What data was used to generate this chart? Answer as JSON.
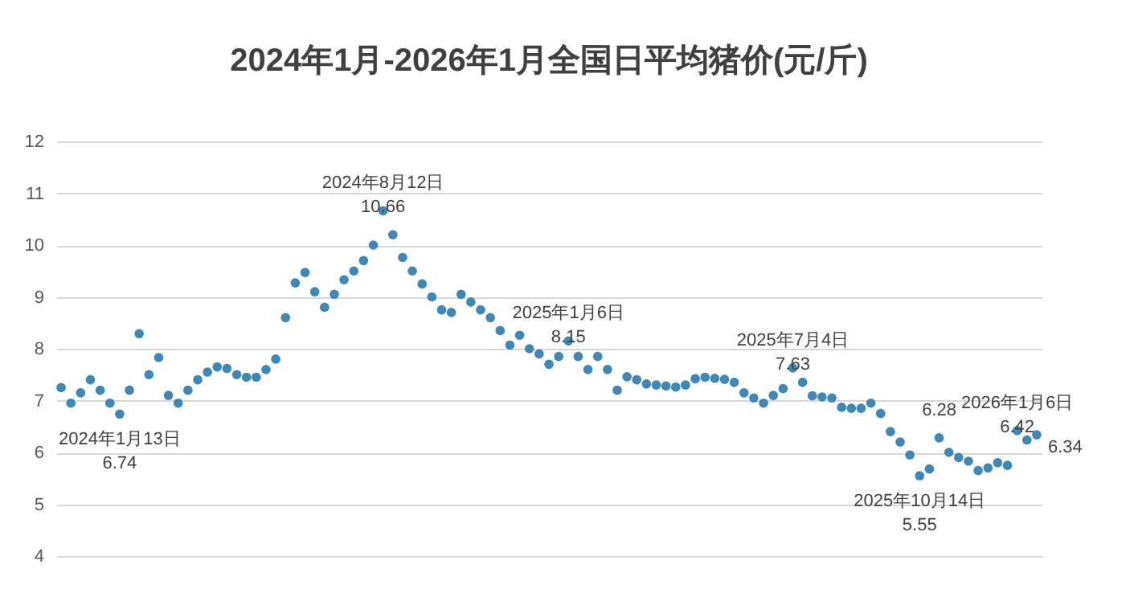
{
  "chart_data": {
    "type": "scatter",
    "title": "2024年1月-2026年1月全国日平均猪价(元/斤)",
    "categories": [
      null,
      null,
      null,
      null,
      null,
      null,
      null,
      null,
      null,
      null,
      null,
      null,
      null,
      null,
      null,
      null,
      null,
      null,
      null,
      null,
      null,
      null,
      null,
      null,
      null,
      null,
      null,
      null,
      null,
      null,
      null,
      null,
      null,
      null,
      null,
      null,
      null,
      null,
      null,
      null,
      null,
      null,
      null,
      null,
      null,
      null,
      null,
      null,
      null,
      null,
      null,
      null,
      null,
      null,
      null,
      null,
      null,
      null,
      null,
      null,
      null,
      null,
      null,
      null,
      null,
      null,
      null,
      null,
      null,
      null,
      null,
      null,
      null,
      null,
      null,
      null,
      null,
      null,
      null,
      null,
      null,
      null,
      null,
      null,
      null,
      null,
      null,
      null,
      null,
      null,
      null,
      null,
      null,
      null,
      null,
      null,
      null,
      null,
      null,
      null,
      null
    ],
    "series": [
      {
        "color": "#3e88b7",
        "values": [
          7.25,
          6.95,
          7.15,
          7.4,
          7.2,
          6.95,
          6.74,
          7.2,
          8.29,
          7.5,
          7.83,
          7.1,
          6.95,
          7.2,
          7.4,
          7.55,
          7.65,
          7.62,
          7.5,
          7.45,
          7.45,
          7.6,
          7.8,
          8.6,
          9.27,
          9.47,
          9.1,
          8.8,
          9.05,
          9.33,
          9.5,
          9.7,
          10.0,
          10.66,
          10.2,
          9.76,
          9.5,
          9.25,
          9.0,
          8.75,
          8.7,
          9.05,
          8.9,
          8.75,
          8.6,
          8.35,
          8.07,
          8.26,
          8.0,
          7.9,
          7.7,
          7.85,
          8.15,
          7.85,
          7.6,
          7.85,
          7.6,
          7.2,
          7.46,
          7.4,
          7.32,
          7.3,
          7.28,
          7.26,
          7.3,
          7.42,
          7.45,
          7.43,
          7.41,
          7.35,
          7.15,
          7.05,
          6.95,
          7.1,
          7.23,
          7.63,
          7.35,
          7.09,
          7.07,
          7.05,
          6.87,
          6.85,
          6.85,
          6.95,
          6.75,
          6.4,
          6.2,
          5.95,
          5.55,
          5.68,
          6.28,
          6.0,
          5.9,
          5.83,
          5.65,
          5.7,
          5.8,
          5.75,
          6.42,
          6.24,
          6.34
        ]
      }
    ],
    "annotations": [
      {
        "text": "2024年1月13日\n6.74",
        "y": 6.74
      },
      {
        "text": "2024年8月12日\n10.66",
        "y": 10.66
      },
      {
        "text": "2025年1月6日\n8.15",
        "y": 8.15
      },
      {
        "text": "2025年7月4日\n7.63",
        "y": 7.63
      },
      {
        "text": "2025年10月14日\n5.55",
        "y": 5.55
      },
      {
        "text": "6.28",
        "y": 6.28
      },
      {
        "text": "2026年1月6日\n6.42",
        "y": 6.42
      },
      "6.34"
    ],
    "ylim": [
      4,
      12
    ],
    "yticks": [
      4,
      5,
      6,
      7,
      8,
      9,
      10,
      11,
      12
    ],
    "tick_labels": "y",
    "grid": "y",
    "marker": "circle"
  }
}
